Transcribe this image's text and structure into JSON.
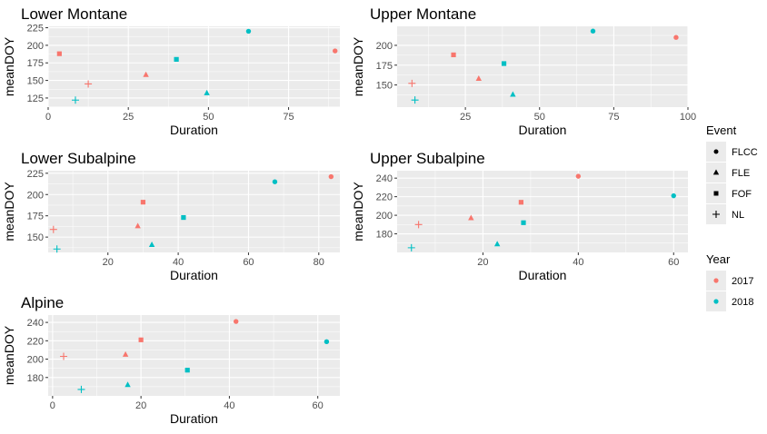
{
  "colors": {
    "2017": "#F8766D",
    "2018": "#00BFC4",
    "legend_shape": "#000000"
  },
  "legend": {
    "event": {
      "title": "Event",
      "items": [
        {
          "label": "FLCC",
          "shape": "circle"
        },
        {
          "label": "FLE",
          "shape": "triangle"
        },
        {
          "label": "FOF",
          "shape": "square"
        },
        {
          "label": "NL",
          "shape": "plus"
        }
      ]
    },
    "year": {
      "title": "Year",
      "items": [
        {
          "label": "2017",
          "color": "#F8766D"
        },
        {
          "label": "2018",
          "color": "#00BFC4"
        }
      ]
    }
  },
  "chart_data": [
    {
      "type": "scatter",
      "title": "Lower Montane",
      "xlabel": "Duration",
      "ylabel": "meanDOY",
      "xlim": [
        0,
        91
      ],
      "ylim": [
        112,
        227
      ],
      "x_ticks": [
        0,
        25,
        50,
        75
      ],
      "y_ticks": [
        125,
        150,
        175,
        200,
        225
      ],
      "grid": true,
      "points": [
        {
          "event": "FLCC",
          "year": "2017",
          "x": 89.5,
          "y": 192
        },
        {
          "event": "FLCC",
          "year": "2018",
          "x": 62.5,
          "y": 220
        },
        {
          "event": "FLE",
          "year": "2017",
          "x": 30.5,
          "y": 158
        },
        {
          "event": "FLE",
          "year": "2018",
          "x": 49.5,
          "y": 132
        },
        {
          "event": "FOF",
          "year": "2017",
          "x": 3.5,
          "y": 188
        },
        {
          "event": "FOF",
          "year": "2018",
          "x": 40,
          "y": 180
        },
        {
          "event": "NL",
          "year": "2017",
          "x": 12.5,
          "y": 145
        },
        {
          "event": "NL",
          "year": "2018",
          "x": 8.5,
          "y": 122
        }
      ]
    },
    {
      "type": "scatter",
      "title": "Upper Montane",
      "xlabel": "Duration",
      "ylabel": "meanDOY",
      "xlim": [
        2,
        100
      ],
      "ylim": [
        122,
        224
      ],
      "x_ticks": [
        25,
        50,
        75,
        100
      ],
      "y_ticks": [
        150,
        175,
        200
      ],
      "grid": true,
      "points": [
        {
          "event": "FLCC",
          "year": "2017",
          "x": 96,
          "y": 210
        },
        {
          "event": "FLCC",
          "year": "2018",
          "x": 68,
          "y": 218
        },
        {
          "event": "FLE",
          "year": "2017",
          "x": 29.5,
          "y": 158
        },
        {
          "event": "FLE",
          "year": "2018",
          "x": 41,
          "y": 138
        },
        {
          "event": "FOF",
          "year": "2017",
          "x": 21,
          "y": 188
        },
        {
          "event": "FOF",
          "year": "2018",
          "x": 38,
          "y": 177
        },
        {
          "event": "NL",
          "year": "2017",
          "x": 7,
          "y": 152
        },
        {
          "event": "NL",
          "year": "2018",
          "x": 8,
          "y": 131
        }
      ]
    },
    {
      "type": "scatter",
      "title": "Lower Subalpine",
      "xlabel": "Duration",
      "ylabel": "meanDOY",
      "xlim": [
        3,
        86
      ],
      "ylim": [
        132,
        228
      ],
      "x_ticks": [
        20,
        40,
        60,
        80
      ],
      "y_ticks": [
        150,
        175,
        200,
        225
      ],
      "grid": true,
      "points": [
        {
          "event": "FLCC",
          "year": "2017",
          "x": 83.5,
          "y": 221
        },
        {
          "event": "FLCC",
          "year": "2018",
          "x": 67.5,
          "y": 215
        },
        {
          "event": "FLE",
          "year": "2017",
          "x": 28.5,
          "y": 163
        },
        {
          "event": "FLE",
          "year": "2018",
          "x": 32.5,
          "y": 141
        },
        {
          "event": "FOF",
          "year": "2017",
          "x": 30,
          "y": 191
        },
        {
          "event": "FOF",
          "year": "2018",
          "x": 41.5,
          "y": 173
        },
        {
          "event": "NL",
          "year": "2017",
          "x": 4.5,
          "y": 159
        },
        {
          "event": "NL",
          "year": "2018",
          "x": 5.5,
          "y": 136
        }
      ]
    },
    {
      "type": "scatter",
      "title": "Upper Subalpine",
      "xlabel": "Duration",
      "ylabel": "meanDOY",
      "xlim": [
        2,
        63
      ],
      "ylim": [
        160,
        248
      ],
      "x_ticks": [
        20,
        40,
        60
      ],
      "y_ticks": [
        180,
        200,
        220,
        240
      ],
      "grid": true,
      "points": [
        {
          "event": "FLCC",
          "year": "2017",
          "x": 40,
          "y": 242
        },
        {
          "event": "FLCC",
          "year": "2018",
          "x": 60,
          "y": 221
        },
        {
          "event": "FLE",
          "year": "2017",
          "x": 17.5,
          "y": 197
        },
        {
          "event": "FLE",
          "year": "2018",
          "x": 23,
          "y": 169
        },
        {
          "event": "FOF",
          "year": "2017",
          "x": 28,
          "y": 214
        },
        {
          "event": "FOF",
          "year": "2018",
          "x": 28.5,
          "y": 192
        },
        {
          "event": "NL",
          "year": "2017",
          "x": 6.5,
          "y": 190
        },
        {
          "event": "NL",
          "year": "2018",
          "x": 5,
          "y": 165
        }
      ]
    },
    {
      "type": "scatter",
      "title": "Alpine",
      "xlabel": "Duration",
      "ylabel": "meanDOY",
      "xlim": [
        -1,
        65
      ],
      "ylim": [
        160,
        248
      ],
      "x_ticks": [
        0,
        20,
        40,
        60
      ],
      "y_ticks": [
        180,
        200,
        220,
        240
      ],
      "grid": true,
      "points": [
        {
          "event": "FLCC",
          "year": "2017",
          "x": 41.5,
          "y": 241
        },
        {
          "event": "FLCC",
          "year": "2018",
          "x": 62,
          "y": 219
        },
        {
          "event": "FLE",
          "year": "2017",
          "x": 16.5,
          "y": 205
        },
        {
          "event": "FLE",
          "year": "2018",
          "x": 17,
          "y": 172
        },
        {
          "event": "FOF",
          "year": "2017",
          "x": 20,
          "y": 221
        },
        {
          "event": "FOF",
          "year": "2018",
          "x": 30.5,
          "y": 188
        },
        {
          "event": "NL",
          "year": "2017",
          "x": 2.5,
          "y": 203
        },
        {
          "event": "NL",
          "year": "2018",
          "x": 6.5,
          "y": 167
        }
      ]
    }
  ]
}
